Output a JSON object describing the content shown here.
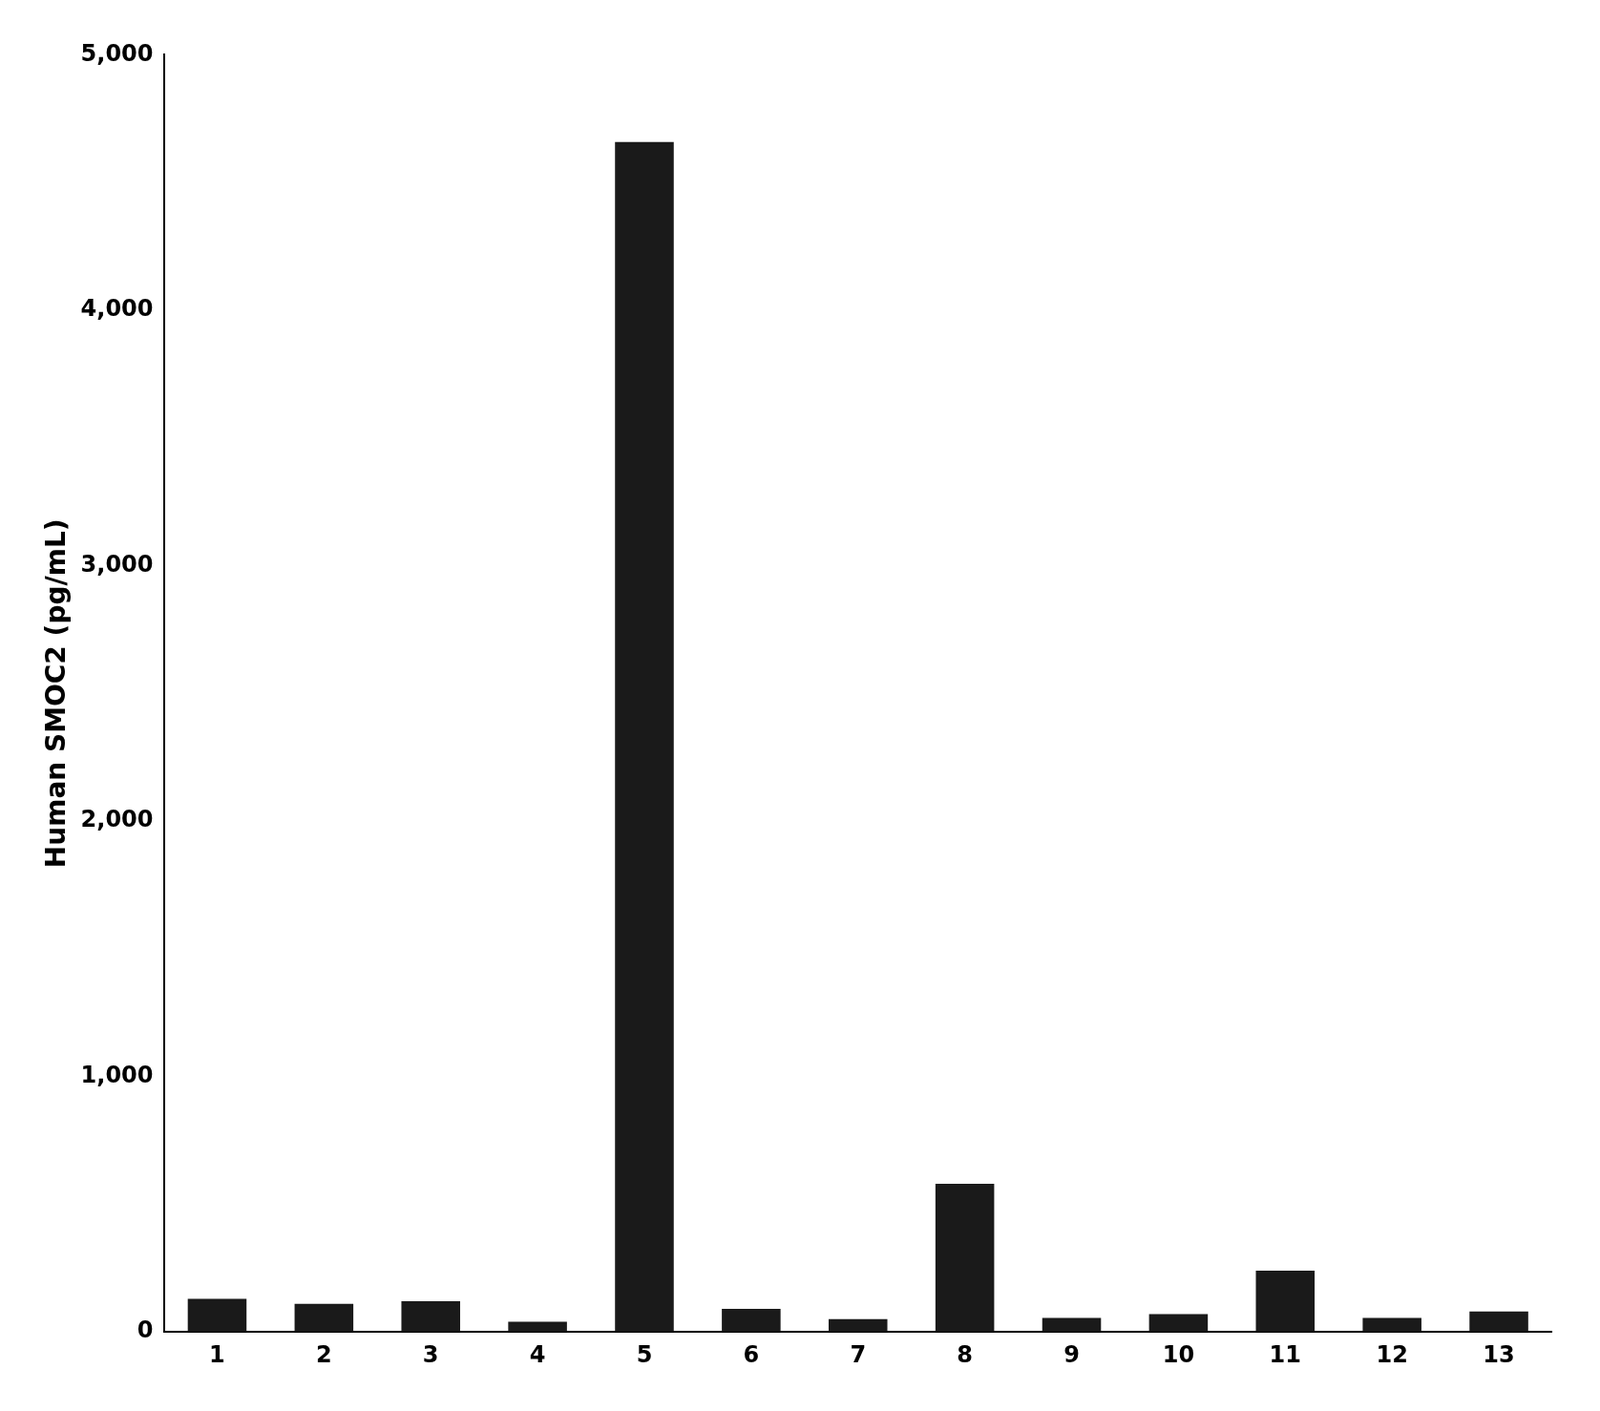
{
  "chart_data": {
    "type": "bar",
    "categories": [
      "1",
      "2",
      "3",
      "4",
      "5",
      "6",
      "7",
      "8",
      "9",
      "10",
      "11",
      "12",
      "13"
    ],
    "values": [
      130,
      110,
      120,
      39.6,
      4658.9,
      90,
      50,
      580,
      55,
      70,
      240,
      55,
      80
    ],
    "color": "#1a1a1a",
    "y_label": "Human SMOC2 (pg/mL)",
    "ylim": [
      0,
      5000
    ],
    "yticks": [
      0,
      {
        "value": 1000,
        "label": "1,000"
      },
      {
        "value": 2000,
        "label": "2,000"
      },
      {
        "value": 3000,
        "label": "3,000"
      },
      {
        "value": 4000,
        "label": "4,000"
      },
      {
        "value": 5000,
        "label": "5,000"
      }
    ],
    "grid": false
  }
}
